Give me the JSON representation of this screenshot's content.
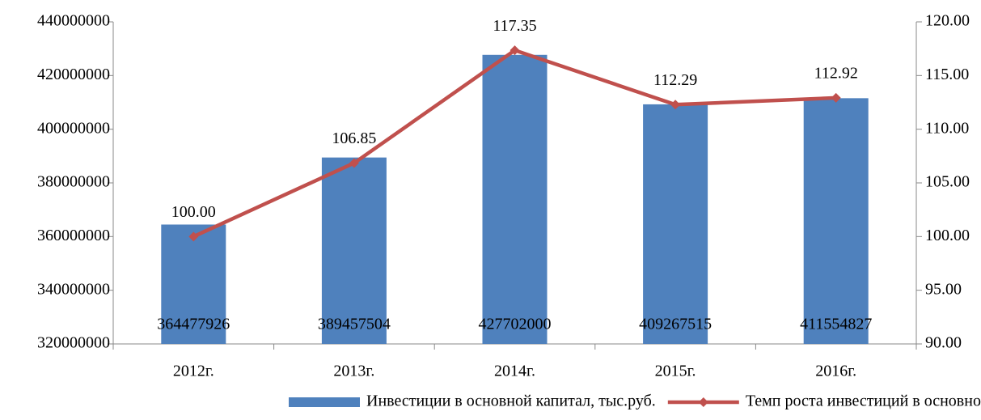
{
  "chart_data": {
    "type": "bar",
    "categories": [
      "2012г.",
      "2013г.",
      "2014г.",
      "2015г.",
      "2016г."
    ],
    "series": [
      {
        "name": "Инвестиции в основной капитал, тыс.руб.",
        "type": "bar",
        "color": "#4f81bd",
        "axis": "y",
        "values": [
          364477926,
          389457504,
          427702000,
          409267515,
          411554827
        ]
      },
      {
        "name": "Темп роста инвестиций в основной капитал, %",
        "type": "line",
        "color": "#c0504d",
        "axis": "y2",
        "values": [
          100,
          106.85,
          117.35,
          112.29,
          112.92
        ],
        "value_labels": [
          "100.00",
          "106.85",
          "117.35",
          "112.29",
          "112.92"
        ]
      }
    ],
    "ylim": [
      320000000,
      440000000
    ],
    "yticks": [
      320000000,
      340000000,
      360000000,
      380000000,
      400000000,
      420000000,
      440000000
    ],
    "y2lim": [
      90,
      120
    ],
    "y2ticks": [
      {
        "value": 90,
        "label": "90.00"
      },
      {
        "value": 95,
        "label": "95.00"
      },
      {
        "value": 100,
        "label": "100.00"
      },
      {
        "value": 105,
        "label": "105.00"
      },
      {
        "value": 110,
        "label": "110.00"
      },
      {
        "value": 115,
        "label": "115.00"
      },
      {
        "value": 120,
        "label": "120.00"
      }
    ],
    "grid": false,
    "legend": "bottom"
  }
}
